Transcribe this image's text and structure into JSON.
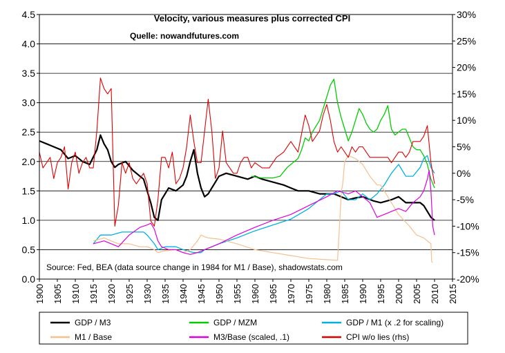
{
  "chart_data": {
    "type": "line",
    "title": "Velocity, various measures plus corrected CPI",
    "subtitle": "Quelle: nowandfutures.com",
    "annotation": "Source: Fed, BEA (data source change in 1984 for M1 / Base), shadowstats.com",
    "xlim": [
      1900,
      2015
    ],
    "ylim_left": [
      0.0,
      4.5
    ],
    "ylim_right": [
      -20,
      30
    ],
    "grid": "horizontal",
    "x_ticks": [
      "1900",
      "1905",
      "1910",
      "1915",
      "1920",
      "1925",
      "1930",
      "1935",
      "1940",
      "1945",
      "1950",
      "1955",
      "1960",
      "1965",
      "1970",
      "1975",
      "1980",
      "1985",
      "1990",
      "1995",
      "2000",
      "2005",
      "2010",
      "2015"
    ],
    "y_ticks_left": [
      "0.0",
      "0.5",
      "1.0",
      "1.5",
      "2.0",
      "2.5",
      "3.0",
      "3.5",
      "4.0",
      "4.5"
    ],
    "y_ticks_right": [
      "-20%",
      "-15%",
      "-10%",
      "-5%",
      "0%",
      "5%",
      "10%",
      "15%",
      "20%",
      "25%",
      "30%"
    ],
    "series": [
      {
        "name": "GDP / M3",
        "color": "#000000",
        "axis": "left",
        "width": 2.2,
        "x": [
          1900,
          1902,
          1904,
          1906,
          1908,
          1910,
          1912,
          1914,
          1916,
          1917,
          1918,
          1919,
          1920,
          1921,
          1922,
          1924,
          1926,
          1928,
          1929,
          1930,
          1931,
          1932,
          1933,
          1934,
          1936,
          1938,
          1940,
          1941,
          1942,
          1943,
          1944,
          1945,
          1946,
          1947,
          1948,
          1950,
          1952,
          1955,
          1958,
          1960,
          1962,
          1965,
          1968,
          1970,
          1972,
          1975,
          1978,
          1980,
          1982,
          1984,
          1986,
          1988,
          1990,
          1993,
          1995,
          1998,
          2000,
          2002,
          2004,
          2006,
          2007,
          2008,
          2009,
          2010
        ],
        "y": [
          2.35,
          2.3,
          2.25,
          2.2,
          2.05,
          2.1,
          2.0,
          1.95,
          2.2,
          2.45,
          2.3,
          2.2,
          2.0,
          1.9,
          1.95,
          2.0,
          1.85,
          1.75,
          1.7,
          1.5,
          1.3,
          1.05,
          1.0,
          1.35,
          1.55,
          1.5,
          1.6,
          1.75,
          2.0,
          2.2,
          1.8,
          1.55,
          1.4,
          1.45,
          1.55,
          1.75,
          1.8,
          1.75,
          1.7,
          1.75,
          1.7,
          1.65,
          1.6,
          1.55,
          1.5,
          1.5,
          1.45,
          1.45,
          1.45,
          1.4,
          1.35,
          1.38,
          1.4,
          1.33,
          1.3,
          1.35,
          1.4,
          1.3,
          1.3,
          1.3,
          1.25,
          1.15,
          1.05,
          1.0
        ]
      },
      {
        "name": "GDP / MZM",
        "color": "#00cc00",
        "axis": "left",
        "width": 1.3,
        "x": [
          1959,
          1962,
          1965,
          1967,
          1969,
          1970,
          1971,
          1972,
          1973,
          1974,
          1975,
          1976,
          1977,
          1978,
          1979,
          1980,
          1981,
          1982,
          1983,
          1984,
          1985,
          1986,
          1987,
          1988,
          1989,
          1990,
          1991,
          1992,
          1993,
          1994,
          1995,
          1996,
          1997,
          1998,
          1999,
          2000,
          2001,
          2002,
          2003,
          2004,
          2005,
          2006,
          2007,
          2008,
          2009,
          2010
        ],
        "y": [
          1.75,
          1.72,
          1.72,
          1.75,
          1.9,
          1.95,
          2.0,
          2.05,
          2.2,
          2.4,
          2.35,
          2.5,
          2.6,
          2.7,
          2.9,
          3.1,
          3.3,
          3.4,
          3.0,
          2.75,
          2.55,
          2.35,
          2.5,
          2.7,
          2.9,
          2.8,
          2.65,
          2.55,
          2.5,
          2.55,
          2.7,
          2.8,
          2.95,
          2.55,
          2.45,
          2.5,
          2.55,
          2.55,
          2.4,
          2.25,
          2.2,
          2.2,
          2.1,
          1.95,
          1.7,
          1.55
        ]
      },
      {
        "name": "GDP / M1  (x .2 for scaling)",
        "color": "#00b0e0",
        "axis": "left",
        "width": 1.3,
        "x": [
          1915,
          1917,
          1920,
          1923,
          1926,
          1929,
          1930,
          1932,
          1933,
          1935,
          1938,
          1940,
          1943,
          1945,
          1946,
          1948,
          1950,
          1955,
          1960,
          1965,
          1970,
          1975,
          1980,
          1982,
          1984,
          1986,
          1988,
          1990,
          1992,
          1994,
          1996,
          1998,
          2000,
          2002,
          2004,
          2006,
          2007,
          2008,
          2009,
          2010
        ],
        "y": [
          0.6,
          0.75,
          0.75,
          0.8,
          0.8,
          0.8,
          0.75,
          0.6,
          0.5,
          0.55,
          0.55,
          0.5,
          0.45,
          0.45,
          0.5,
          0.55,
          0.6,
          0.7,
          0.82,
          0.92,
          1.02,
          1.2,
          1.45,
          1.45,
          1.5,
          1.35,
          1.35,
          1.45,
          1.35,
          1.45,
          1.6,
          1.8,
          1.95,
          1.75,
          1.75,
          1.9,
          2.05,
          2.1,
          1.9,
          1.8
        ]
      },
      {
        "name": "M1 / Base",
        "color": "#f4c08e",
        "axis": "left",
        "width": 1.2,
        "x": [
          1915,
          1918,
          1920,
          1922,
          1925,
          1928,
          1930,
          1932,
          1933,
          1935,
          1938,
          1940,
          1942,
          1944,
          1945,
          1946,
          1947,
          1950,
          1955,
          1960,
          1965,
          1970,
          1975,
          1980,
          1983,
          1984,
          1984.05,
          1984.4,
          1985,
          1986,
          1988,
          1990,
          1992,
          1994,
          1995,
          1997,
          2000,
          2003,
          2005,
          2007,
          2008,
          2009,
          2009.2,
          2009.5
        ],
        "y": [
          0.65,
          0.7,
          0.65,
          0.6,
          0.6,
          0.55,
          0.55,
          0.5,
          0.45,
          0.48,
          0.5,
          0.45,
          0.5,
          0.65,
          0.75,
          0.72,
          0.7,
          0.68,
          0.6,
          0.5,
          0.45,
          0.4,
          0.35,
          0.33,
          0.32,
          1.4,
          1.5,
          1.6,
          2.0,
          2.1,
          2.05,
          1.95,
          1.75,
          1.6,
          1.6,
          1.4,
          1.1,
          0.9,
          0.75,
          0.7,
          0.65,
          0.6,
          0.3,
          0.28
        ]
      },
      {
        "name": "M3/Base (scaled, .1)",
        "color": "#dd00dd",
        "axis": "left",
        "width": 1.2,
        "x": [
          1915,
          1918,
          1920,
          1922,
          1925,
          1928,
          1930,
          1931,
          1932,
          1933,
          1934,
          1936,
          1938,
          1940,
          1942,
          1944,
          1946,
          1950,
          1955,
          1960,
          1965,
          1970,
          1975,
          1980,
          1983,
          1986,
          1988,
          1990,
          1992,
          1994,
          1996,
          1998,
          2000,
          2002,
          2004,
          2006,
          2007,
          2008,
          2008.5,
          2009,
          2009.5,
          2010
        ],
        "y": [
          0.6,
          0.65,
          0.6,
          0.55,
          0.75,
          0.88,
          0.92,
          0.95,
          0.85,
          0.65,
          0.55,
          0.5,
          0.5,
          0.45,
          0.42,
          0.45,
          0.5,
          0.6,
          0.75,
          0.88,
          1.0,
          1.1,
          1.25,
          1.4,
          1.5,
          1.45,
          1.5,
          1.4,
          1.3,
          1.05,
          1.1,
          1.15,
          1.2,
          1.15,
          1.3,
          1.4,
          1.5,
          1.7,
          1.85,
          1.5,
          0.9,
          0.75
        ]
      },
      {
        "name": "CPI w/o lies (rhs)",
        "color": "#dd0000",
        "axis": "right",
        "width": 1.1,
        "x": [
          1900,
          1901,
          1902,
          1903,
          1904,
          1905,
          1906,
          1907,
          1908,
          1909,
          1910,
          1911,
          1912,
          1913,
          1914,
          1915,
          1916,
          1917,
          1918,
          1919,
          1920,
          1921,
          1922,
          1923,
          1924,
          1925,
          1926,
          1927,
          1928,
          1929,
          1930,
          1931,
          1932,
          1933,
          1934,
          1935,
          1936,
          1937,
          1938,
          1939,
          1940,
          1941,
          1942,
          1943,
          1944,
          1945,
          1946,
          1947,
          1948,
          1949,
          1950,
          1951,
          1952,
          1953,
          1954,
          1955,
          1956,
          1957,
          1958,
          1959,
          1960,
          1962,
          1964,
          1966,
          1968,
          1970,
          1972,
          1974,
          1975,
          1976,
          1978,
          1979,
          1980,
          1981,
          1982,
          1983,
          1984,
          1985,
          1986,
          1987,
          1988,
          1989,
          1990,
          1991,
          1992,
          1993,
          1994,
          1995,
          1996,
          1997,
          1998,
          1999,
          2000,
          2001,
          2002,
          2003,
          2004,
          2005,
          2006,
          2007,
          2008,
          2009,
          2010
        ],
        "y": [
          4,
          1,
          2,
          3,
          -1,
          2,
          3,
          5,
          -3,
          2,
          4,
          0,
          2,
          3,
          1,
          1,
          8,
          18,
          16,
          15,
          16,
          -10,
          -6,
          2,
          0,
          2,
          -1,
          -2,
          -1,
          0,
          -2,
          -9,
          -10,
          -5,
          3,
          3,
          1,
          4,
          -2,
          -1,
          1,
          5,
          11,
          6,
          2,
          2,
          8,
          14,
          8,
          -1,
          1,
          8,
          2,
          1,
          0,
          0,
          2,
          3,
          3,
          1,
          2,
          1,
          1,
          3,
          4,
          6,
          4,
          11,
          9,
          6,
          8,
          11,
          13,
          10,
          6,
          4,
          5,
          4,
          3,
          5,
          4,
          5,
          5,
          4,
          3,
          3,
          3,
          3,
          3,
          3,
          2,
          3,
          4,
          4,
          3,
          4,
          6,
          6,
          6,
          7,
          9,
          2,
          -2
        ]
      }
    ]
  }
}
